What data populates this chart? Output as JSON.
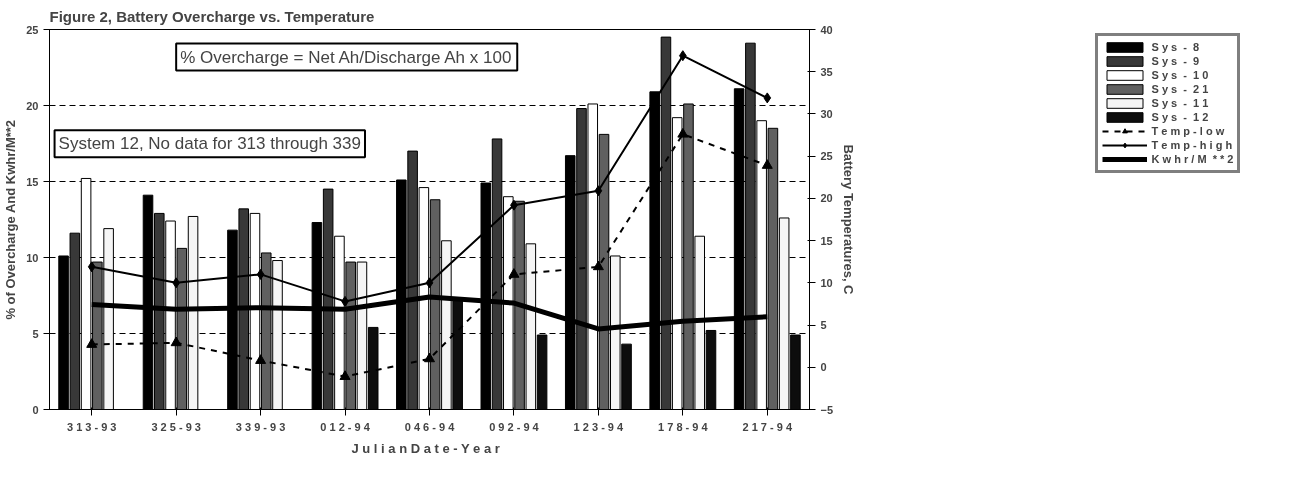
{
  "chart_data": {
    "type": "bar",
    "title": "Figure 2, Battery Overcharge vs. Temperature",
    "xlabel": "J u l i a n   D a t e - Y e a r",
    "ylabel": "% of Overcharge And Kwhr/M**2",
    "y2label": "Battery Temperatures, C",
    "categories": [
      "3 1 3 - 9 3",
      "3 2 5 - 9 3",
      "3 3 9 - 9 3",
      "0 1 2 - 9 4",
      "0 4 6 - 9 4",
      "0 9 2 - 9 4",
      "1 2 3 - 9 4",
      "1 7 8 - 9 4",
      "2 1 7 - 9 4"
    ],
    "series": [
      {
        "name": "S y s  -  8",
        "color": "#000000",
        "values": [
          10.1,
          14.1,
          11.8,
          12.3,
          15.1,
          14.9,
          16.7,
          20.9,
          21.1
        ]
      },
      {
        "name": "S y s  -  9",
        "color": "#383838",
        "values": [
          11.6,
          12.9,
          13.2,
          14.5,
          17.0,
          17.8,
          19.8,
          24.5,
          24.1
        ]
      },
      {
        "name": "S y s  -  1 0",
        "color": "#ffffff",
        "values": [
          15.2,
          12.4,
          12.9,
          11.4,
          14.6,
          14.0,
          20.1,
          19.2,
          19.0
        ]
      },
      {
        "name": "S y s  -  2 1",
        "color": "#606060",
        "values": [
          9.7,
          10.6,
          10.3,
          9.7,
          13.8,
          13.7,
          18.1,
          20.1,
          18.5
        ]
      },
      {
        "name": "S y s  -  1 1",
        "color": "#f5f5f5",
        "values": [
          11.9,
          12.7,
          9.8,
          9.7,
          11.1,
          10.9,
          10.1,
          11.4,
          12.6
        ]
      },
      {
        "name": "S y s  -  1 2",
        "color": "#0d0d0d",
        "values": [
          null,
          null,
          null,
          5.4,
          7.2,
          4.9,
          4.3,
          5.2,
          4.9
        ]
      },
      {
        "name": "T e m p - l o w",
        "type": "line",
        "axis": "y2",
        "color": "#000000",
        "marker": "triangle",
        "line_style": "dashed",
        "values": [
          2.7,
          2.9,
          0.8,
          -1.1,
          1.0,
          11.0,
          11.9,
          27.6,
          23.9
        ]
      },
      {
        "name": "T e m p - h i g h",
        "type": "line",
        "axis": "y2",
        "color": "#000000",
        "marker": "diamond",
        "line_style": "solid",
        "values": [
          11.9,
          10.0,
          11.0,
          7.8,
          10.0,
          19.2,
          20.9,
          36.9,
          31.9
        ]
      },
      {
        "name": "K w h r / M  * * 2",
        "type": "line",
        "color": "#000000",
        "marker": "none",
        "line_style": "solid",
        "values": [
          6.9,
          6.6,
          6.7,
          6.6,
          7.4,
          7.0,
          5.3,
          5.8,
          6.1
        ]
      }
    ],
    "ylim": [
      0,
      25
    ],
    "yticks": [
      0,
      5,
      10,
      15,
      20,
      25
    ],
    "y2lim": [
      -5,
      40
    ],
    "y2ticks": [
      -5,
      0,
      5,
      10,
      15,
      20,
      25,
      30,
      35,
      40
    ],
    "grid": "y",
    "legend": "top right",
    "annotations": [
      "% Overcharge = Net Ah/Discharge Ah x 100",
      "System 12, No data for 313 through 339"
    ]
  }
}
